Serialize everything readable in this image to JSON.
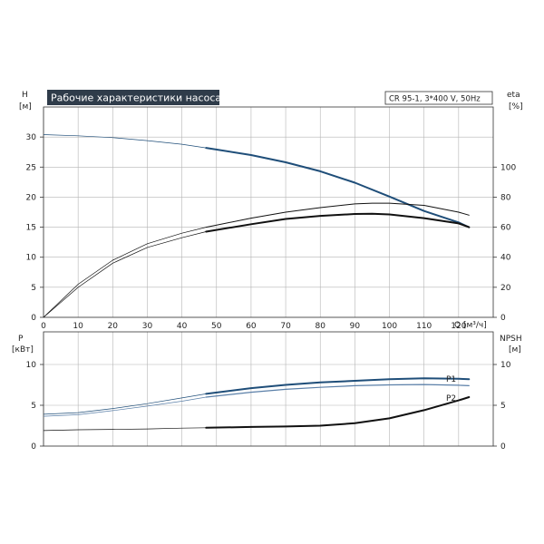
{
  "chart_data": [
    {
      "type": "line",
      "title": "Рабочие характеристики насоса",
      "subtitle": "CR 95-1, 3*400 V, 50Hz",
      "xlabel": "Q [м³/ч]",
      "ylabel_left": "H",
      "ylabel_left_unit": "[м]",
      "ylabel_right": "eta",
      "ylabel_right_unit": "[%]",
      "xlim": [
        0,
        130
      ],
      "ylim_left": [
        0,
        35
      ],
      "ylim_right": [
        0,
        140
      ],
      "x_ticks": [
        "0",
        "10",
        "20",
        "30",
        "40",
        "50",
        "60",
        "70",
        "80",
        "90",
        "100",
        "110",
        "120"
      ],
      "y_ticks_left": [
        "0",
        "5",
        "10",
        "15",
        "20",
        "25",
        "30"
      ],
      "y_ticks_right": [
        "0",
        "20",
        "40",
        "60",
        "80",
        "100"
      ],
      "grid": true,
      "series": [
        {
          "axis": "left",
          "role": "head",
          "color": "#1f4e79",
          "x": [
            0,
            10,
            20,
            30,
            40,
            47,
            60,
            70,
            80,
            90,
            100,
            110,
            120,
            123
          ],
          "y": [
            30.4,
            30.2,
            29.9,
            29.4,
            28.8,
            28.2,
            27.0,
            25.8,
            24.3,
            22.4,
            20.1,
            17.7,
            15.8,
            15.0
          ]
        },
        {
          "axis": "right",
          "role": "efficiency",
          "color": "#111111",
          "x": [
            0,
            10,
            20,
            30,
            40,
            47,
            60,
            70,
            80,
            90,
            95,
            100,
            110,
            120,
            123
          ],
          "y": [
            0,
            22,
            38,
            49,
            56,
            60,
            66,
            70,
            73,
            75.5,
            76,
            76,
            74.5,
            70,
            68
          ]
        },
        {
          "axis": "right",
          "role": "efficiency-lower",
          "color": "#111111",
          "x": [
            0,
            10,
            20,
            30,
            40,
            47,
            60,
            70,
            80,
            90,
            95,
            100,
            110,
            120,
            123
          ],
          "y": [
            0,
            20,
            36,
            46.5,
            53,
            57,
            62,
            65.5,
            67.5,
            68.8,
            69,
            68.5,
            66,
            62.5,
            60
          ]
        }
      ]
    },
    {
      "type": "line",
      "ylabel_left": "P",
      "ylabel_left_unit": "[кВт]",
      "ylabel_right": "NPSH",
      "ylabel_right_unit": "[м]",
      "xlim": [
        0,
        130
      ],
      "ylim_left": [
        0,
        14
      ],
      "ylim_right": [
        0,
        14
      ],
      "y_ticks_left": [
        "0",
        "5",
        "10"
      ],
      "y_ticks_right": [
        "0",
        "5",
        "10"
      ],
      "grid": true,
      "series": [
        {
          "name": "P1",
          "axis": "left",
          "color": "#1f4e79",
          "x": [
            0,
            10,
            20,
            30,
            40,
            47,
            60,
            70,
            80,
            90,
            100,
            110,
            120,
            123
          ],
          "y": [
            3.9,
            4.1,
            4.6,
            5.2,
            5.9,
            6.4,
            7.1,
            7.5,
            7.8,
            8.0,
            8.2,
            8.3,
            8.25,
            8.2
          ]
        },
        {
          "name": "P2",
          "axis": "left",
          "color": "#5a7fa8",
          "x": [
            0,
            10,
            20,
            30,
            40,
            47,
            60,
            70,
            80,
            90,
            100,
            110,
            120,
            123
          ],
          "y": [
            3.65,
            3.85,
            4.35,
            4.9,
            5.5,
            6.0,
            6.6,
            6.95,
            7.2,
            7.4,
            7.5,
            7.55,
            7.45,
            7.4
          ]
        },
        {
          "name": "NPSH",
          "axis": "right",
          "color": "#111111",
          "x": [
            0,
            10,
            20,
            30,
            40,
            47,
            60,
            70,
            80,
            90,
            100,
            110,
            120,
            123
          ],
          "y": [
            1.9,
            2.0,
            2.05,
            2.1,
            2.2,
            2.25,
            2.35,
            2.4,
            2.5,
            2.8,
            3.4,
            4.4,
            5.6,
            6.0
          ]
        }
      ]
    }
  ]
}
